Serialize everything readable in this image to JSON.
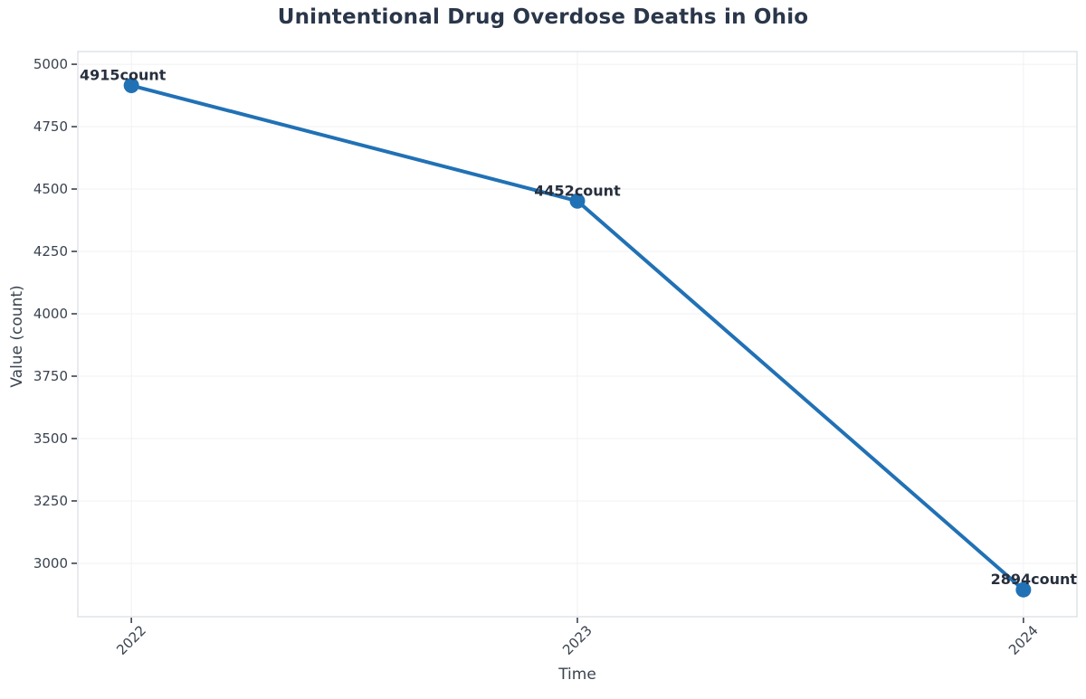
{
  "chart_data": {
    "type": "line",
    "title": "Unintentional Drug Overdose Deaths in Ohio",
    "xlabel": "Time",
    "ylabel": "Value (count)",
    "x": [
      2022,
      2023,
      2024
    ],
    "series": [
      {
        "name": "count",
        "values": [
          4915,
          4452,
          2894
        ]
      }
    ],
    "point_labels": [
      "4915count",
      "4452count",
      "2894count"
    ],
    "point_label_anchors": [
      "left",
      "center",
      "right"
    ],
    "xticks": [
      2022,
      2023,
      2024
    ],
    "xtick_labels": [
      "2022",
      "2023",
      "2024"
    ],
    "yticks": [
      3000,
      3250,
      3500,
      3750,
      4000,
      4250,
      4500,
      4750,
      5000
    ],
    "xlim": [
      2021.88,
      2024.12
    ],
    "ylim": [
      2786,
      5051
    ],
    "grid": true,
    "legend": "none",
    "colors": {
      "line": "#2171b5",
      "marker": "#2171b5",
      "grid": "#f0f1f5",
      "spine": "#d8dce3",
      "tick": "#3a4350",
      "tick_label": "#3a4350",
      "title": "#2a3649",
      "axis_label": "#3a4350",
      "annotation": "#272f3d"
    }
  }
}
